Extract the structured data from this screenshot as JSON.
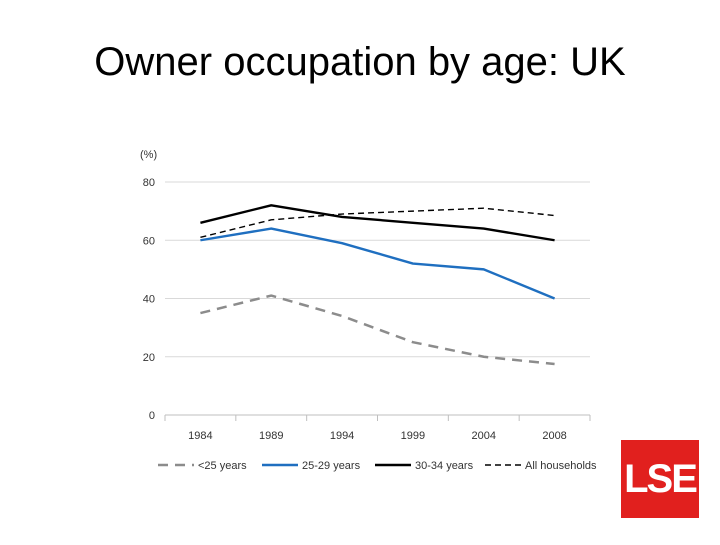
{
  "slide": {
    "title": "Owner occupation by age: UK"
  },
  "logo": {
    "text": "LSE",
    "color": "#e1201e"
  },
  "chart_data": {
    "type": "line",
    "title": "",
    "ylabel": "(%)",
    "xlabel": "",
    "categories": [
      "1984",
      "1989",
      "1994",
      "1999",
      "2004",
      "2008"
    ],
    "yticks": [
      "0",
      "20",
      "40",
      "60",
      "80"
    ],
    "ylim": [
      0,
      80
    ],
    "grid": true,
    "legend_position": "bottom",
    "series": [
      {
        "name": "<25 years",
        "values": [
          35,
          41,
          34,
          25,
          20,
          17.5
        ],
        "color": "#8c8c8c",
        "style": "dashed-thick"
      },
      {
        "name": "25-29 years",
        "values": [
          60,
          64,
          59,
          52,
          50,
          40
        ],
        "color": "#1f6fc0",
        "style": "solid"
      },
      {
        "name": "30-34 years",
        "values": [
          66,
          72,
          68,
          66,
          64,
          60
        ],
        "color": "#000000",
        "style": "solid"
      },
      {
        "name": "All households",
        "values": [
          61,
          67,
          69,
          70,
          71,
          68.5
        ],
        "color": "#000000",
        "style": "dashed-thin"
      }
    ]
  }
}
